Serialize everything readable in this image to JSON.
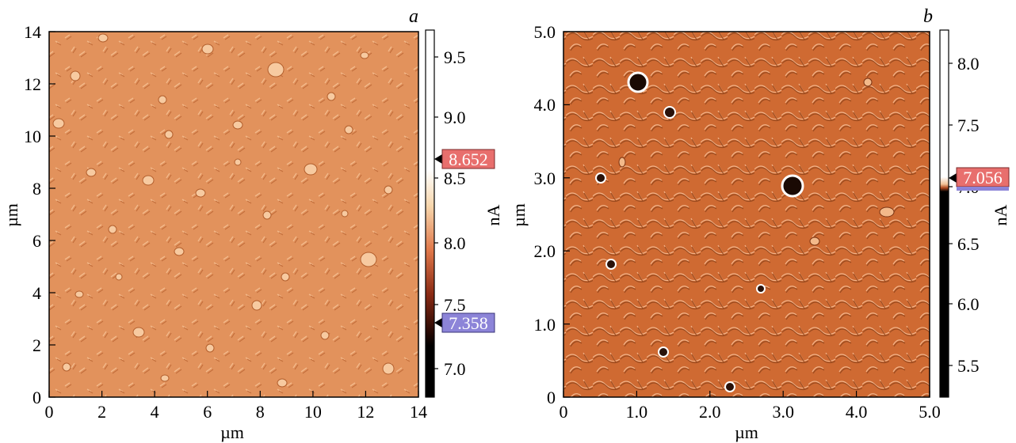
{
  "panels": [
    {
      "letter": "a",
      "x_ticks": [
        "0",
        "2",
        "4",
        "6",
        "8",
        "10",
        "12",
        "14"
      ],
      "y_ticks": [
        "0",
        "2",
        "4",
        "6",
        "8",
        "10",
        "12",
        "14"
      ],
      "x_title": "µm",
      "y_title": "µm",
      "colorbar_ticks": [
        "9.5",
        "9.0",
        "8.5",
        "8.0",
        "7.5",
        "7.0"
      ],
      "colorbar_unit": "nA",
      "marker_high": "8.652",
      "marker_low": "7.358",
      "surface_color": "#e2925c"
    },
    {
      "letter": "b",
      "x_ticks": [
        "0",
        "1.0",
        "2.0",
        "3.0",
        "4.0",
        "5.0"
      ],
      "y_ticks": [
        "0",
        "1.0",
        "2.0",
        "3.0",
        "4.0",
        "5.0"
      ],
      "x_title": "µm",
      "y_title": "µm",
      "colorbar_ticks": [
        "8.0",
        "7.5",
        "7.0",
        "6.5",
        "6.0",
        "5.5"
      ],
      "colorbar_unit": "nA",
      "marker_high": "7.056",
      "surface_color": "#cf6a32"
    }
  ],
  "colors": {
    "marker_high_bg": "#e86f6d",
    "marker_low_bg": "#8c84d8"
  }
}
